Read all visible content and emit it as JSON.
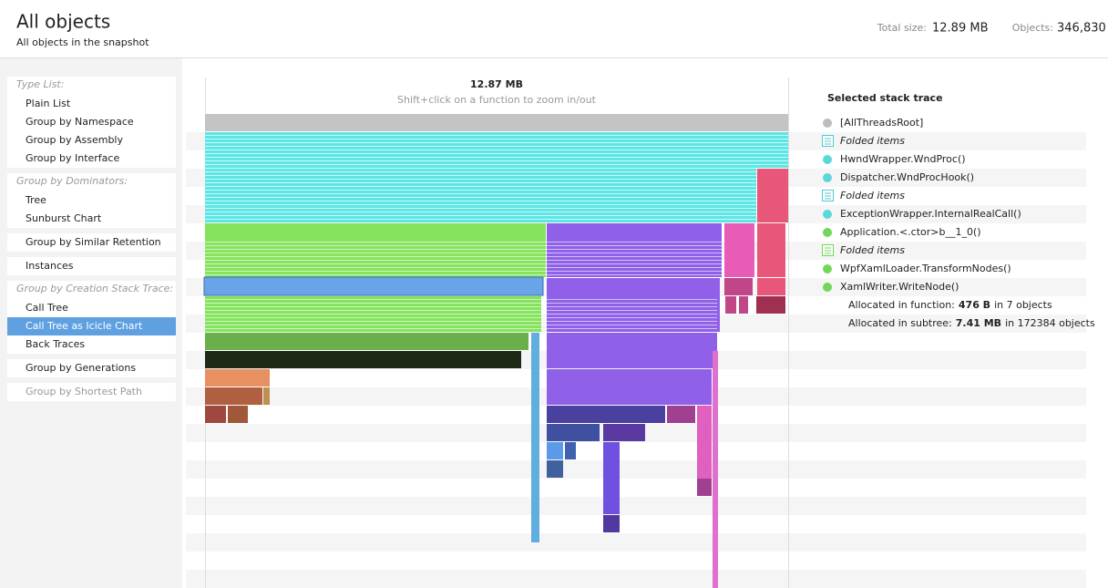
{
  "header": {
    "title": "All objects",
    "subtitle": "All objects in the snapshot",
    "total_size_label": "Total size:",
    "total_size": "12.89 MB",
    "objects_label": "Objects:",
    "objects": "346,830"
  },
  "sidebar": {
    "blocks": [
      {
        "heading": "Type List:",
        "items": [
          {
            "label": "Plain List"
          },
          {
            "label": "Group by Namespace"
          },
          {
            "label": "Group by Assembly"
          },
          {
            "label": "Group by Interface"
          }
        ]
      },
      {
        "heading": "Group by Dominators:",
        "items": [
          {
            "label": "Tree"
          },
          {
            "label": "Sunburst Chart"
          }
        ]
      },
      {
        "items": [
          {
            "label": "Group by Similar Retention"
          }
        ]
      },
      {
        "items": [
          {
            "label": "Instances"
          }
        ]
      },
      {
        "heading": "Group by Creation Stack Trace:",
        "items": [
          {
            "label": "Call Tree"
          },
          {
            "label": "Call Tree as Icicle Chart",
            "selected": true
          },
          {
            "label": "Back Traces"
          }
        ]
      },
      {
        "items": [
          {
            "label": "Group by Generations"
          }
        ]
      },
      {
        "items": [
          {
            "label": "Group by Shortest Path",
            "disabled": true
          }
        ]
      }
    ]
  },
  "chart": {
    "total": "12.87 MB",
    "hint": "Shift+click on a function to zoom in/out"
  },
  "stack_trace": {
    "title": "Selected stack trace",
    "frames": [
      {
        "label": "[AllThreadsRoot]",
        "kind": "dot",
        "color": "#bdbdbd"
      },
      {
        "label": "Folded items",
        "kind": "folded",
        "color": "#4fc9d4"
      },
      {
        "label": "HwndWrapper.WndProc()",
        "kind": "dot",
        "color": "#5ad8d8"
      },
      {
        "label": "Dispatcher.WndProcHook()",
        "kind": "dot",
        "color": "#5ad8d8"
      },
      {
        "label": "Folded items",
        "kind": "folded",
        "color": "#4fc9d4"
      },
      {
        "label": "ExceptionWrapper.InternalRealCall()",
        "kind": "dot",
        "color": "#5ad8d8"
      },
      {
        "label": "Application.<.ctor>b__1_0()",
        "kind": "dot",
        "color": "#72d65a"
      },
      {
        "label": "Folded items",
        "kind": "folded",
        "color": "#72d65a"
      },
      {
        "label": "WpfXamlLoader.TransformNodes()",
        "kind": "dot",
        "color": "#72d65a"
      },
      {
        "label": "XamlWriter.WriteNode()",
        "kind": "dot",
        "color": "#72d65a"
      }
    ],
    "allocations": [
      {
        "label": "Allocated in function:",
        "value": "476 B",
        "rest": "in 7 objects"
      },
      {
        "label": "Allocated in subtree:",
        "value": "7.41 MB",
        "rest": "in 172384 objects"
      }
    ]
  }
}
